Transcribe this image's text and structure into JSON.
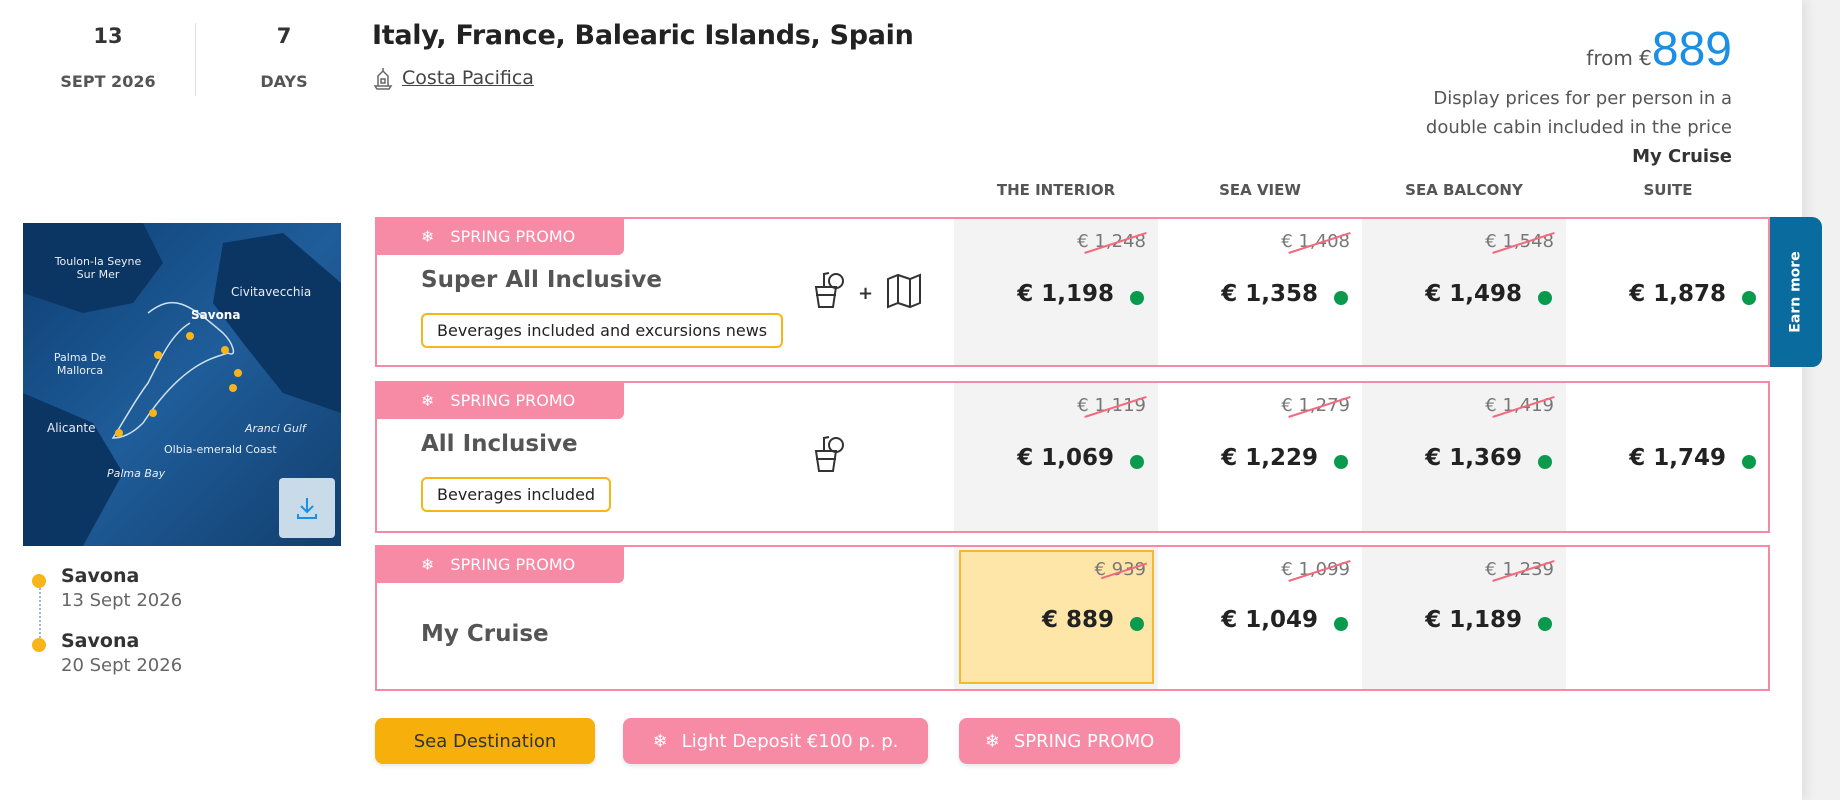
{
  "departure": {
    "day": "13",
    "month_year": "SEPT 2026"
  },
  "duration": {
    "value": "7",
    "unit": "DAYS"
  },
  "title": "Italy, France, Balearic Islands, Spain",
  "ship": {
    "icon": "ship-icon",
    "name": "Costa Pacifica"
  },
  "from_price": {
    "prefix": "from €",
    "value": "889",
    "note_line1": "Display prices for per person in a",
    "note_line2": "double cabin included in the price",
    "package": "My Cruise"
  },
  "columns": [
    "THE INTERIOR",
    "SEA VIEW",
    "SEA BALCONY",
    "SUITE"
  ],
  "map": {
    "labels": [
      "Toulon-la Seyne Sur Mer",
      "Savona",
      "Civitavecchia",
      "Palma De Mallorca",
      "Alicante",
      "Aranci Gulf",
      "Olbia-emerald Coast",
      "Palma Bay"
    ],
    "download_icon": "download-icon"
  },
  "itinerary": [
    {
      "port": "Savona",
      "date": "13 Sept 2026"
    },
    {
      "port": "Savona",
      "date": "20 Sept 2026"
    }
  ],
  "rows": [
    {
      "promo": "SPRING PROMO",
      "name": "Super All Inclusive",
      "badge": "Beverages included and excursions news",
      "icons": [
        "drink-icon",
        "map-icon"
      ],
      "prices": [
        {
          "old": "€ 1,248",
          "price": "€ 1,198"
        },
        {
          "old": "€ 1,408",
          "price": "€ 1,358"
        },
        {
          "old": "€ 1,548",
          "price": "€ 1,498"
        },
        {
          "old": "",
          "price": "€ 1,878"
        }
      ]
    },
    {
      "promo": "SPRING PROMO",
      "name": "All Inclusive",
      "badge": "Beverages included",
      "icons": [
        "drink-icon"
      ],
      "prices": [
        {
          "old": "€ 1,119",
          "price": "€ 1,069"
        },
        {
          "old": "€ 1,279",
          "price": "€ 1,229"
        },
        {
          "old": "€ 1,419",
          "price": "€ 1,369"
        },
        {
          "old": "",
          "price": "€ 1,749"
        }
      ]
    },
    {
      "promo": "SPRING PROMO",
      "name": "My Cruise",
      "badge": "",
      "icons": [],
      "prices": [
        {
          "old": "€ 939",
          "price": "€ 889",
          "selected": true
        },
        {
          "old": "€ 1,099",
          "price": "€ 1,049"
        },
        {
          "old": "€ 1,239",
          "price": "€ 1,189"
        }
      ]
    }
  ],
  "earn_more": "Earn more",
  "tags": {
    "sea_destination": "Sea Destination",
    "light_deposit": "Light Deposit €100 p. p.",
    "spring_promo": "SPRING PROMO"
  },
  "colors": {
    "promo_pink": "#f78aa5",
    "accent_blue": "#1a8fe3",
    "availability_green": "#0a9a4e",
    "badge_yellow": "#f7b51b",
    "earn_blue": "#0a6b9f",
    "selected_cell": "#fde6a8"
  }
}
